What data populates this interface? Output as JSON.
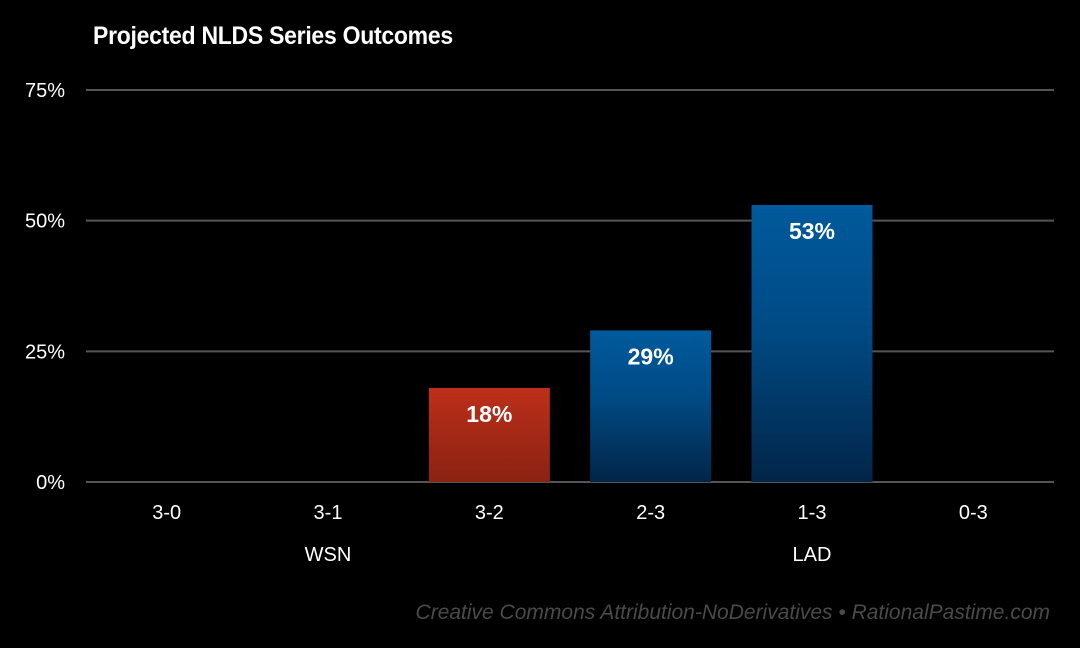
{
  "chart_data": {
    "type": "bar",
    "title": "Projected NLDS Series Outcomes",
    "xlabel": "",
    "ylabel": "",
    "categories": [
      "3-0",
      "3-1",
      "3-2",
      "2-3",
      "1-3",
      "0-3"
    ],
    "values": [
      0,
      0,
      18,
      29,
      53,
      0
    ],
    "data_labels": [
      "",
      "",
      "18%",
      "29%",
      "53%",
      ""
    ],
    "bar_colors": [
      "#c0311a",
      "#c0311a",
      "#c0311a",
      "#005a9c",
      "#005a9c",
      "#005a9c"
    ],
    "y_ticks": [
      0,
      25,
      50,
      75
    ],
    "y_tick_labels": [
      "0%",
      "25%",
      "50%",
      "75%"
    ],
    "ylim": [
      0,
      75
    ],
    "grid": true,
    "group_labels": [
      {
        "label": "WSN",
        "under_category": "3-1"
      },
      {
        "label": "LAD",
        "under_category": "1-3"
      }
    ],
    "legend": "none"
  },
  "footer": {
    "credit": "Creative Commons Attribution-NoDerivatives  •  RationalPastime.com"
  }
}
